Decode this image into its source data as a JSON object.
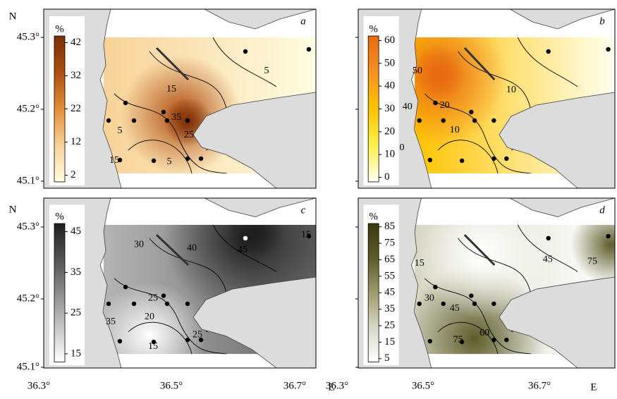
{
  "axes": {
    "lat_label": "N",
    "lon_label": "E",
    "lat_ticks": [
      "45.3°",
      "45.2°",
      "45.1°"
    ],
    "lon_ticks": [
      "36.3°",
      "36.5°",
      "36.7°"
    ]
  },
  "panels": [
    {
      "letter": "a",
      "unit": "%",
      "colorbar": {
        "ticks": [
          42,
          32,
          22,
          12,
          2
        ],
        "colors": [
          "#fffde2",
          "#f8d298",
          "#e58f36",
          "#b04e12",
          "#7a2e08"
        ]
      },
      "contour_labels": [
        "5",
        "15",
        "35",
        "25",
        "5",
        "15",
        "5"
      ]
    },
    {
      "letter": "b",
      "unit": "%",
      "colorbar": {
        "ticks": [
          60,
          50,
          40,
          30,
          20,
          10,
          0
        ],
        "colors": [
          "#fffff0",
          "#fff04a",
          "#ffc400",
          "#f59222",
          "#e86a12"
        ]
      },
      "contour_labels": [
        "50",
        "40",
        "20",
        "10",
        "10",
        "20"
      ]
    },
    {
      "letter": "c",
      "unit": "%",
      "colorbar": {
        "ticks": [
          45,
          35,
          25,
          15
        ],
        "colors": [
          "#ffffff",
          "#b4b4b4",
          "#646464",
          "#1e1e1e"
        ]
      },
      "contour_labels": [
        "30",
        "40",
        "45",
        "15",
        "35",
        "25",
        "20",
        "15",
        "25"
      ]
    },
    {
      "letter": "d",
      "unit": "%",
      "colorbar": {
        "ticks": [
          85,
          75,
          65,
          55,
          45,
          35,
          25,
          15,
          5
        ],
        "colors": [
          "#ffffff",
          "#d8d8c6",
          "#9c9c6e",
          "#5c5c2a",
          "#38380e"
        ]
      },
      "contour_labels": [
        "15",
        "30",
        "45",
        "45",
        "75",
        "60",
        "75"
      ]
    }
  ]
}
